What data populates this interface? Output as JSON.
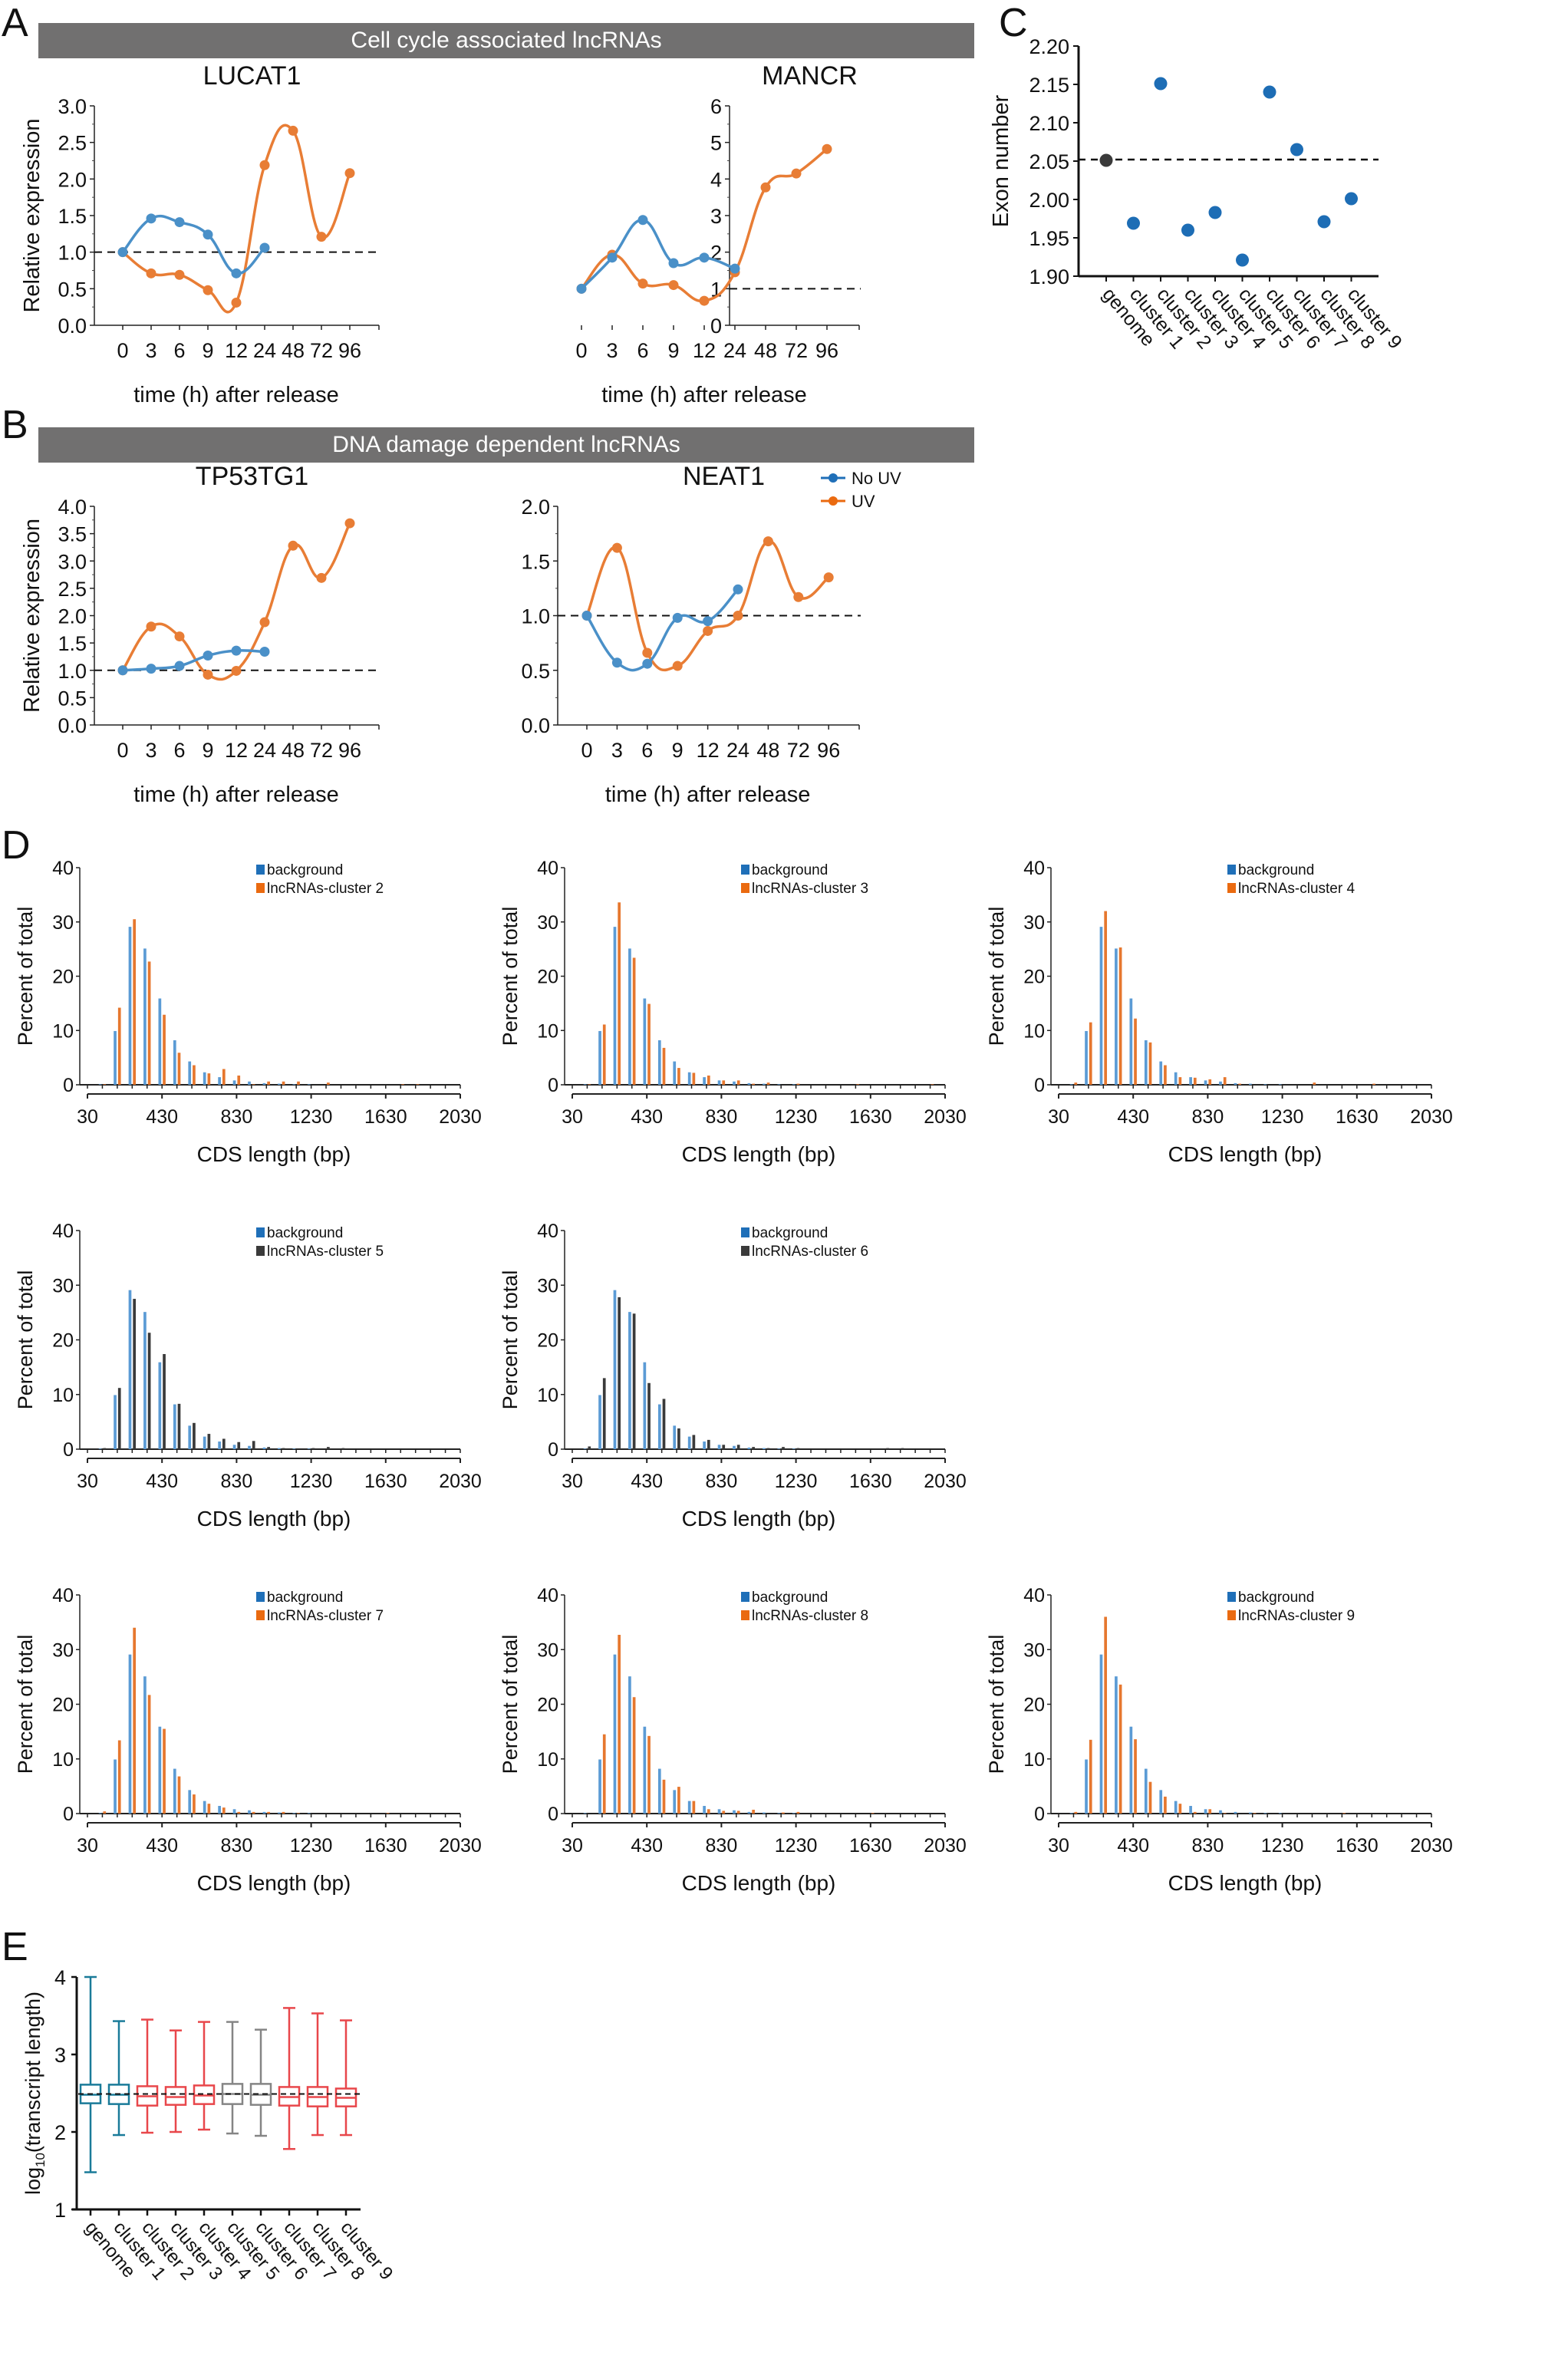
{
  "panels": {
    "A": {
      "letter": "A",
      "banner": "Cell cycle associated lncRNAs"
    },
    "B": {
      "letter": "B",
      "banner": "DNA damage dependent lncRNAs"
    },
    "C": {
      "letter": "C"
    },
    "D": {
      "letter": "D"
    },
    "E": {
      "letter": "E"
    }
  },
  "colors": {
    "no_uv": "#4a90c8",
    "uv": "#e87d35",
    "legend_no_uv": "#1f6fb8",
    "legend_uv": "#ea6a10",
    "banner": "#717070",
    "scatter": "#1d6db5",
    "scatter_genome": "#3a3a3a",
    "bg_bar": "#5b9bd5",
    "orange_bar": "#e6772e",
    "dark_bar": "#3a3a3a",
    "box_teal": "#1a7b99",
    "box_red": "#e8474b",
    "box_gray": "#858585"
  },
  "chart_data": [
    {
      "id": "A-LUCAT1",
      "type": "line",
      "title": "LUCAT1",
      "xlabel": "time (h) after release",
      "ylabel": "Relative expression",
      "categories": [
        "0",
        "3",
        "6",
        "9",
        "12",
        "24",
        "48",
        "72",
        "96"
      ],
      "ylim": [
        0,
        3.0
      ],
      "yticks": [
        "0.0",
        "0.5",
        "1.0",
        "1.5",
        "2.0",
        "2.5",
        "3.0"
      ],
      "reference_line": 1.0,
      "series": [
        {
          "name": "No UV",
          "values": [
            1.0,
            1.46,
            1.41,
            1.24,
            0.71,
            1.06,
            null,
            null,
            null
          ]
        },
        {
          "name": "UV",
          "values": [
            1.0,
            0.71,
            0.69,
            0.48,
            0.31,
            2.19,
            2.66,
            1.21,
            2.08
          ]
        }
      ]
    },
    {
      "id": "A-MANCR",
      "type": "line",
      "title": "MANCR",
      "xlabel": "time (h) after release",
      "ylabel": "",
      "categories": [
        "0",
        "3",
        "6",
        "9",
        "12",
        "24",
        "48",
        "72",
        "96"
      ],
      "ylim": [
        0,
        6
      ],
      "yticks": [
        "0",
        "1",
        "2",
        "3",
        "4",
        "5",
        "6"
      ],
      "reference_line": 1.0,
      "series": [
        {
          "name": "No UV",
          "values": [
            1.0,
            1.85,
            2.88,
            1.7,
            1.85,
            1.55,
            null,
            null,
            null
          ]
        },
        {
          "name": "UV",
          "values": [
            1.0,
            1.93,
            1.14,
            1.1,
            0.67,
            1.45,
            3.77,
            4.15,
            4.82
          ]
        }
      ]
    },
    {
      "id": "B-TP53TG1",
      "type": "line",
      "title": "TP53TG1",
      "xlabel": "time (h) after release",
      "ylabel": "Relative expression",
      "categories": [
        "0",
        "3",
        "6",
        "9",
        "12",
        "24",
        "48",
        "72",
        "96"
      ],
      "ylim": [
        0,
        4.0
      ],
      "yticks": [
        "0.0",
        "0.5",
        "1.0",
        "1.5",
        "2.0",
        "2.5",
        "3.0",
        "3.5",
        "4.0"
      ],
      "reference_line": 1.0,
      "series": [
        {
          "name": "No UV",
          "values": [
            1.0,
            1.03,
            1.08,
            1.27,
            1.36,
            1.34,
            null,
            null,
            null
          ]
        },
        {
          "name": "UV",
          "values": [
            1.0,
            1.8,
            1.62,
            0.92,
            0.99,
            1.88,
            3.28,
            2.69,
            3.69
          ]
        }
      ]
    },
    {
      "id": "B-NEAT1",
      "type": "line",
      "title": "NEAT1",
      "xlabel": "time (h) after release",
      "ylabel": "",
      "categories": [
        "0",
        "3",
        "6",
        "9",
        "12",
        "24",
        "48",
        "72",
        "96"
      ],
      "ylim": [
        0,
        2.0
      ],
      "yticks": [
        "0.0",
        "0.5",
        "1.0",
        "1.5",
        "2.0"
      ],
      "reference_line": 1.0,
      "legend": {
        "position": "top-right",
        "entries": [
          "No UV",
          "UV"
        ]
      },
      "series": [
        {
          "name": "No UV",
          "values": [
            1.0,
            0.57,
            0.56,
            0.98,
            0.95,
            1.24,
            null,
            null,
            null
          ]
        },
        {
          "name": "UV",
          "values": [
            1.0,
            1.62,
            0.66,
            0.54,
            0.86,
            1.0,
            1.68,
            1.17,
            1.35
          ]
        }
      ]
    },
    {
      "id": "C",
      "type": "scatter",
      "ylabel": "Exon number",
      "categories": [
        "genome",
        "cluster 1",
        "cluster 2",
        "cluster 3",
        "cluster 4",
        "cluster 5",
        "cluster 6",
        "cluster 7",
        "cluster 8",
        "cluster 9"
      ],
      "values": [
        2.051,
        1.969,
        2.151,
        1.96,
        1.983,
        1.921,
        2.14,
        2.065,
        1.971,
        2.001
      ],
      "ylim": [
        1.9,
        2.2
      ],
      "yticks": [
        "1.90",
        "1.95",
        "2.00",
        "2.05",
        "2.10",
        "2.15",
        "2.20"
      ],
      "reference_line": 2.052
    },
    {
      "id": "D-cluster2",
      "type": "bar",
      "xlabel": "CDS length (bp)",
      "ylabel": "Percent of total",
      "bin_start": 30,
      "bin_width": 80,
      "xticks": [
        "30",
        "430",
        "830",
        "1230",
        "1630",
        "2030"
      ],
      "ylim": [
        0,
        40
      ],
      "yticks": [
        "0",
        "10",
        "20",
        "30",
        "40"
      ],
      "series": [
        {
          "name": "background",
          "values": [
            0,
            0.1,
            9.9,
            29.1,
            25.1,
            15.9,
            8.2,
            4.3,
            2.3,
            1.4,
            0.8,
            0.6,
            0.3,
            0.2,
            0.1,
            0.1,
            0,
            0,
            0,
            0,
            0,
            0,
            0,
            0,
            0
          ]
        },
        {
          "name": "lncRNAs-cluster 2",
          "values": [
            0,
            0.1,
            14.2,
            30.5,
            22.7,
            12.9,
            5.9,
            3.6,
            2.1,
            2.9,
            1.7,
            0.1,
            0.6,
            0.6,
            0.6,
            0,
            0.4,
            0,
            0,
            0,
            0,
            0.1,
            0.1,
            0,
            0
          ]
        }
      ]
    },
    {
      "id": "D-cluster3",
      "type": "bar",
      "xlabel": "CDS length (bp)",
      "ylabel": "Percent of total",
      "bin_start": 30,
      "bin_width": 80,
      "xticks": [
        "30",
        "430",
        "830",
        "1230",
        "1630",
        "2030"
      ],
      "ylim": [
        0,
        40
      ],
      "yticks": [
        "0",
        "10",
        "20",
        "30",
        "40"
      ],
      "series": [
        {
          "name": "background",
          "values": [
            0,
            0.1,
            9.9,
            29.1,
            25.1,
            15.9,
            8.2,
            4.3,
            2.3,
            1.4,
            0.8,
            0.6,
            0.3,
            0.2,
            0.1,
            0.1,
            0,
            0,
            0,
            0,
            0,
            0,
            0,
            0,
            0
          ]
        },
        {
          "name": "lncRNAs-cluster 3",
          "values": [
            0,
            0.1,
            11.1,
            33.6,
            23.4,
            14.9,
            6.8,
            3.1,
            2.2,
            1.7,
            0.8,
            0.8,
            0.2,
            0.4,
            0,
            0.2,
            0,
            0,
            0,
            0.1,
            0,
            0,
            0,
            0,
            0.1
          ]
        }
      ]
    },
    {
      "id": "D-cluster4",
      "type": "bar",
      "xlabel": "CDS length (bp)",
      "ylabel": "Percent of total",
      "bin_start": 30,
      "bin_width": 80,
      "xticks": [
        "30",
        "430",
        "830",
        "1230",
        "1630",
        "2030"
      ],
      "ylim": [
        0,
        40
      ],
      "yticks": [
        "0",
        "10",
        "20",
        "30",
        "40"
      ],
      "series": [
        {
          "name": "background",
          "values": [
            0,
            0.1,
            9.9,
            29.1,
            25.1,
            15.9,
            8.2,
            4.3,
            2.3,
            1.4,
            0.8,
            0.6,
            0.3,
            0.2,
            0.1,
            0.1,
            0,
            0,
            0,
            0,
            0,
            0,
            0,
            0,
            0
          ]
        },
        {
          "name": "lncRNAs-cluster 4",
          "values": [
            0,
            0.4,
            11.5,
            32.0,
            25.3,
            12.2,
            7.8,
            3.6,
            1.4,
            1.3,
            1.0,
            1.4,
            0.2,
            0,
            0,
            0,
            0,
            0.4,
            0,
            0,
            0,
            0.2,
            0,
            0,
            0
          ]
        }
      ]
    },
    {
      "id": "D-cluster5",
      "type": "bar",
      "xlabel": "CDS length (bp)",
      "ylabel": "Percent of total",
      "bin_start": 30,
      "bin_width": 80,
      "xticks": [
        "30",
        "430",
        "830",
        "1230",
        "1630",
        "2030"
      ],
      "ylim": [
        0,
        40
      ],
      "yticks": [
        "0",
        "10",
        "20",
        "30",
        "40"
      ],
      "series": [
        {
          "name": "background",
          "values": [
            0,
            0.1,
            9.9,
            29.1,
            25.1,
            15.9,
            8.2,
            4.3,
            2.3,
            1.4,
            0.8,
            0.6,
            0.3,
            0.2,
            0.1,
            0.1,
            0,
            0,
            0,
            0,
            0,
            0,
            0,
            0,
            0
          ]
        },
        {
          "name": "lncRNAs-cluster 5",
          "values": [
            0,
            0.2,
            11.2,
            27.5,
            21.3,
            17.4,
            8.3,
            4.8,
            2.8,
            1.9,
            1.3,
            1.5,
            0.4,
            0.2,
            0,
            0.2,
            0.4,
            0.2,
            0,
            0,
            0,
            0,
            0,
            0,
            0
          ]
        }
      ]
    },
    {
      "id": "D-cluster6",
      "type": "bar",
      "xlabel": "CDS length (bp)",
      "ylabel": "Percent of total",
      "bin_start": 30,
      "bin_width": 80,
      "xticks": [
        "30",
        "430",
        "830",
        "1230",
        "1630",
        "2030"
      ],
      "ylim": [
        0,
        40
      ],
      "yticks": [
        "0",
        "10",
        "20",
        "30",
        "40"
      ],
      "series": [
        {
          "name": "background",
          "values": [
            0,
            0.1,
            9.9,
            29.1,
            25.1,
            15.9,
            8.2,
            4.3,
            2.3,
            1.4,
            0.8,
            0.6,
            0.3,
            0.2,
            0.1,
            0.1,
            0,
            0,
            0,
            0,
            0,
            0,
            0,
            0,
            0
          ]
        },
        {
          "name": "lncRNAs-cluster 6",
          "values": [
            0,
            0.5,
            13.0,
            27.8,
            24.8,
            12.1,
            9.2,
            3.8,
            2.6,
            1.7,
            0.8,
            0.8,
            0.4,
            0.2,
            0.4,
            0.2,
            0,
            0,
            0,
            0,
            0,
            0.2,
            0.2,
            0,
            0
          ]
        }
      ]
    },
    {
      "id": "D-cluster7",
      "type": "bar",
      "xlabel": "CDS length (bp)",
      "ylabel": "Percent of total",
      "bin_start": 30,
      "bin_width": 80,
      "xticks": [
        "30",
        "430",
        "830",
        "1230",
        "1630",
        "2030"
      ],
      "ylim": [
        0,
        40
      ],
      "yticks": [
        "0",
        "10",
        "20",
        "30",
        "40"
      ],
      "series": [
        {
          "name": "background",
          "values": [
            0,
            0.1,
            9.9,
            29.1,
            25.1,
            15.9,
            8.2,
            4.3,
            2.3,
            1.4,
            0.8,
            0.6,
            0.3,
            0.2,
            0.1,
            0.1,
            0,
            0,
            0,
            0,
            0,
            0,
            0,
            0,
            0
          ]
        },
        {
          "name": "lncRNAs-cluster 7",
          "values": [
            0,
            0.4,
            13.4,
            34.0,
            21.7,
            15.5,
            6.8,
            3.5,
            1.8,
            1.1,
            0.3,
            0.3,
            0.3,
            0.3,
            0.1,
            0,
            0,
            0,
            0,
            0,
            0.1,
            0,
            0,
            0,
            0
          ]
        }
      ]
    },
    {
      "id": "D-cluster8",
      "type": "bar",
      "xlabel": "CDS length (bp)",
      "ylabel": "Percent of total",
      "bin_start": 30,
      "bin_width": 80,
      "xticks": [
        "30",
        "430",
        "830",
        "1230",
        "1630",
        "2030"
      ],
      "ylim": [
        0,
        40
      ],
      "yticks": [
        "0",
        "10",
        "20",
        "30",
        "40"
      ],
      "series": [
        {
          "name": "background",
          "values": [
            0,
            0.1,
            9.9,
            29.1,
            25.1,
            15.9,
            8.2,
            4.3,
            2.3,
            1.4,
            0.8,
            0.6,
            0.3,
            0.2,
            0.1,
            0.1,
            0,
            0,
            0,
            0,
            0,
            0,
            0,
            0,
            0
          ]
        },
        {
          "name": "lncRNAs-cluster 8",
          "values": [
            0,
            0,
            14.5,
            32.7,
            21.3,
            14.2,
            6.2,
            4.9,
            2.3,
            0.8,
            0.5,
            0.5,
            0.7,
            0,
            0.2,
            0.3,
            0,
            0,
            0,
            0,
            0.1,
            0,
            0,
            0,
            0
          ]
        }
      ]
    },
    {
      "id": "D-cluster9",
      "type": "bar",
      "xlabel": "CDS length (bp)",
      "ylabel": "Percent of total",
      "bin_start": 30,
      "bin_width": 80,
      "xticks": [
        "30",
        "430",
        "830",
        "1230",
        "1630",
        "2030"
      ],
      "ylim": [
        0,
        40
      ],
      "yticks": [
        "0",
        "10",
        "20",
        "30",
        "40"
      ],
      "series": [
        {
          "name": "background",
          "values": [
            0,
            0.1,
            9.9,
            29.1,
            25.1,
            15.9,
            8.2,
            4.3,
            2.3,
            1.4,
            0.8,
            0.6,
            0.3,
            0.2,
            0.1,
            0.1,
            0,
            0,
            0,
            0,
            0,
            0,
            0,
            0,
            0
          ]
        },
        {
          "name": "lncRNAs-cluster 9",
          "values": [
            0,
            0.3,
            13.5,
            36.0,
            23.6,
            13.6,
            5.8,
            3.1,
            1.8,
            0.3,
            0.8,
            0.1,
            0,
            0.1,
            0,
            0,
            0,
            0,
            0,
            0.1,
            0,
            0,
            0,
            0,
            0
          ]
        }
      ]
    },
    {
      "id": "E",
      "type": "box",
      "ylabel": "log10(transcript length)",
      "categories": [
        "genome",
        "cluster 1",
        "cluster 2",
        "cluster 3",
        "cluster 4",
        "cluster 5",
        "cluster 6",
        "cluster 7",
        "cluster 8",
        "cluster 9"
      ],
      "ylim": [
        1,
        4
      ],
      "yticks": [
        "1",
        "2",
        "3",
        "4"
      ],
      "reference_line": 2.49,
      "colors": [
        "teal",
        "teal",
        "red",
        "red",
        "red",
        "gray",
        "gray",
        "red",
        "red",
        "red"
      ],
      "boxes": [
        {
          "min": 1.48,
          "q1": 2.37,
          "median": 2.48,
          "q3": 2.61,
          "max": 4.0
        },
        {
          "min": 1.96,
          "q1": 2.36,
          "median": 2.48,
          "q3": 2.61,
          "max": 3.43
        },
        {
          "min": 1.99,
          "q1": 2.34,
          "median": 2.46,
          "q3": 2.59,
          "max": 3.45
        },
        {
          "min": 2.0,
          "q1": 2.35,
          "median": 2.45,
          "q3": 2.58,
          "max": 3.31
        },
        {
          "min": 2.03,
          "q1": 2.36,
          "median": 2.47,
          "q3": 2.6,
          "max": 3.42
        },
        {
          "min": 1.98,
          "q1": 2.36,
          "median": 2.49,
          "q3": 2.62,
          "max": 3.42
        },
        {
          "min": 1.95,
          "q1": 2.35,
          "median": 2.48,
          "q3": 2.62,
          "max": 3.32
        },
        {
          "min": 1.78,
          "q1": 2.34,
          "median": 2.45,
          "q3": 2.58,
          "max": 3.6
        },
        {
          "min": 1.96,
          "q1": 2.33,
          "median": 2.45,
          "q3": 2.58,
          "max": 3.53
        },
        {
          "min": 1.96,
          "q1": 2.33,
          "median": 2.44,
          "q3": 2.56,
          "max": 3.44
        }
      ]
    }
  ]
}
